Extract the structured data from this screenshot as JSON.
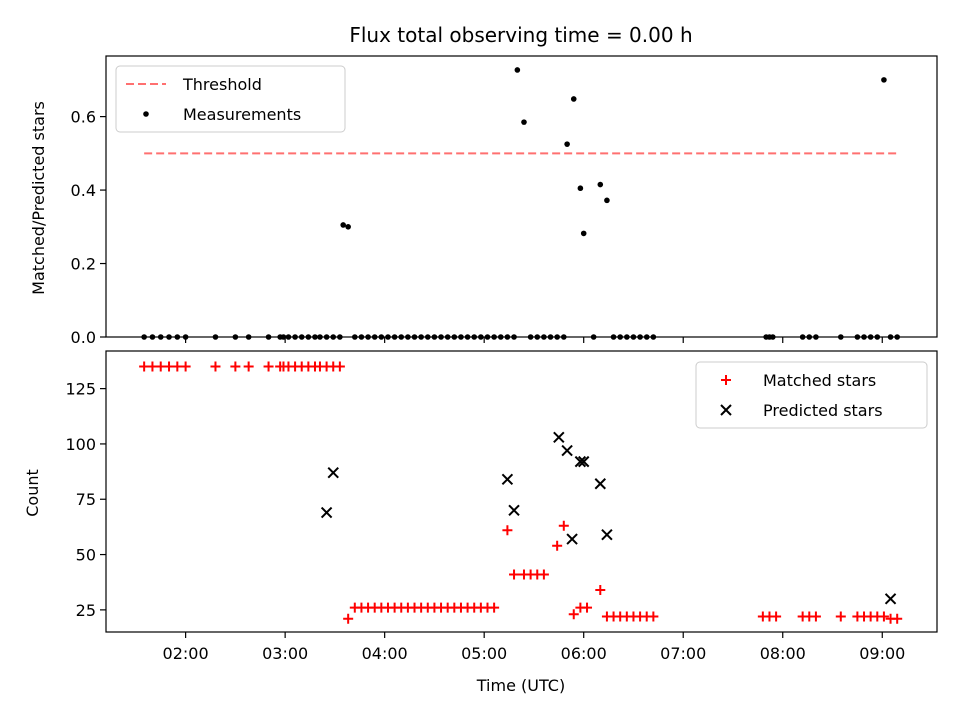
{
  "chart_data": [
    {
      "type": "scatter",
      "title": "Flux total observing time = 0.00 h",
      "xlabel": "",
      "ylabel": "Matched/Predicted stars",
      "xlim": [
        "01:12",
        "09:33"
      ],
      "ylim": [
        0,
        0.765
      ],
      "xticks": [
        "02:00",
        "03:00",
        "04:00",
        "05:00",
        "06:00",
        "07:00",
        "08:00",
        "09:00"
      ],
      "yticks": [
        0.0,
        0.2,
        0.4,
        0.6
      ],
      "ytick_labels": [
        "0.0",
        "0.2",
        "0.4",
        "0.6"
      ],
      "legend": "top-left",
      "series": [
        {
          "name": "Threshold",
          "kind": "line",
          "style": "dashed",
          "color": "#ff7070",
          "x": [
            "01:35",
            "09:10"
          ],
          "y": [
            0.5,
            0.5
          ]
        },
        {
          "name": "Measurements",
          "kind": "scatter",
          "marker": "dot",
          "color": "#000000",
          "x": [
            "01:35",
            "01:40",
            "01:45",
            "01:50",
            "01:55",
            "02:00",
            "02:18",
            "02:30",
            "02:38",
            "02:50",
            "02:57",
            "02:59",
            "03:02",
            "03:06",
            "03:10",
            "03:14",
            "03:18",
            "03:21",
            "03:25",
            "03:29",
            "03:33",
            "03:35",
            "03:38",
            "03:42",
            "03:46",
            "03:50",
            "03:54",
            "03:58",
            "04:02",
            "04:06",
            "04:10",
            "04:14",
            "04:18",
            "04:22",
            "04:26",
            "04:30",
            "04:34",
            "04:38",
            "04:42",
            "04:46",
            "04:50",
            "04:54",
            "04:58",
            "05:02",
            "05:06",
            "05:10",
            "05:14",
            "05:18",
            "05:20",
            "05:24",
            "05:28",
            "05:32",
            "05:36",
            "05:40",
            "05:44",
            "05:48",
            "05:50",
            "05:54",
            "05:58",
            "06:00",
            "06:06",
            "06:10",
            "06:14",
            "06:18",
            "06:22",
            "06:26",
            "06:30",
            "06:34",
            "06:38",
            "06:42",
            "07:50",
            "07:52",
            "07:54",
            "08:12",
            "08:16",
            "08:20",
            "08:35",
            "08:45",
            "08:49",
            "08:53",
            "08:57",
            "09:01",
            "09:05",
            "09:09"
          ],
          "y": [
            0,
            0,
            0,
            0,
            0,
            0,
            0,
            0,
            0,
            0,
            0,
            0,
            0,
            0,
            0,
            0,
            0,
            0,
            0,
            0,
            0,
            0.305,
            0.3,
            0,
            0,
            0,
            0,
            0,
            0,
            0,
            0,
            0,
            0,
            0,
            0,
            0,
            0,
            0,
            0,
            0,
            0,
            0,
            0,
            0,
            0,
            0,
            0,
            0,
            0.727,
            0.585,
            0,
            0,
            0,
            0,
            0,
            0,
            0.525,
            0.648,
            0.405,
            0.282,
            0,
            0.415,
            0.372,
            0,
            0,
            0,
            0,
            0,
            0,
            0,
            0,
            0,
            0,
            0,
            0,
            0,
            0,
            0,
            0,
            0,
            0,
            0.7,
            0,
            0
          ]
        }
      ]
    },
    {
      "type": "scatter",
      "title": "",
      "xlabel": "Time (UTC)",
      "ylabel": "Count",
      "xlim": [
        "01:12",
        "09:33"
      ],
      "ylim": [
        15,
        142
      ],
      "xticks": [
        "02:00",
        "03:00",
        "04:00",
        "05:00",
        "06:00",
        "07:00",
        "08:00",
        "09:00"
      ],
      "yticks": [
        25,
        50,
        75,
        100,
        125
      ],
      "legend": "top-right",
      "series": [
        {
          "name": "Matched stars",
          "kind": "scatter",
          "marker": "plus",
          "color": "#ff0000",
          "x": [
            "01:35",
            "01:40",
            "01:45",
            "01:50",
            "01:55",
            "02:00",
            "02:18",
            "02:30",
            "02:38",
            "02:50",
            "02:57",
            "02:59",
            "03:02",
            "03:06",
            "03:10",
            "03:14",
            "03:18",
            "03:21",
            "03:25",
            "03:29",
            "03:33",
            "03:38",
            "03:42",
            "03:46",
            "03:50",
            "03:54",
            "03:58",
            "04:02",
            "04:06",
            "04:10",
            "04:14",
            "04:18",
            "04:22",
            "04:26",
            "04:30",
            "04:34",
            "04:38",
            "04:42",
            "04:46",
            "04:50",
            "04:54",
            "04:58",
            "05:02",
            "05:06",
            "05:14",
            "05:18",
            "05:24",
            "05:28",
            "05:32",
            "05:36",
            "05:44",
            "05:48",
            "05:54",
            "05:58",
            "06:02",
            "06:10",
            "06:14",
            "06:18",
            "06:22",
            "06:26",
            "06:30",
            "06:34",
            "06:38",
            "06:42",
            "07:48",
            "07:52",
            "07:56",
            "08:12",
            "08:16",
            "08:20",
            "08:35",
            "08:45",
            "08:49",
            "08:53",
            "08:57",
            "09:01",
            "09:05",
            "09:09"
          ],
          "y": [
            135,
            135,
            135,
            135,
            135,
            135,
            135,
            135,
            135,
            135,
            135,
            135,
            135,
            135,
            135,
            135,
            135,
            135,
            135,
            135,
            135,
            21,
            26,
            26,
            26,
            26,
            26,
            26,
            26,
            26,
            26,
            26,
            26,
            26,
            26,
            26,
            26,
            26,
            26,
            26,
            26,
            26,
            26,
            26,
            61,
            41,
            41,
            41,
            41,
            41,
            54,
            63,
            23,
            26,
            26,
            34,
            22,
            22,
            22,
            22,
            22,
            22,
            22,
            22,
            22,
            22,
            22,
            22,
            22,
            22,
            22,
            22,
            22,
            22,
            22,
            22,
            21,
            21
          ]
        },
        {
          "name": "Predicted stars",
          "kind": "scatter",
          "marker": "cross",
          "color": "#000000",
          "x": [
            "03:25",
            "03:29",
            "05:14",
            "05:18",
            "05:45",
            "05:50",
            "05:53",
            "05:58",
            "06:00",
            "06:10",
            "06:14",
            "09:05"
          ],
          "y": [
            69,
            87,
            84,
            70,
            103,
            97,
            57,
            92,
            92,
            82,
            59,
            30
          ]
        }
      ]
    }
  ]
}
